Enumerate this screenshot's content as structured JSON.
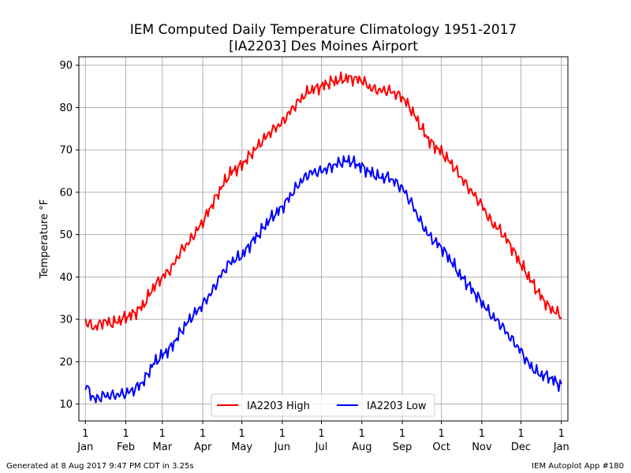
{
  "title_line1": "IEM Computed Daily Temperature Climatology 1951-2017",
  "title_line2": "[IA2203] Des Moines Airport",
  "footer_left": "Generated at 8 Aug 2017 9:47 PM CDT in 3.25s",
  "footer_right": "IEM Autoplot App #180",
  "chart_data": {
    "type": "line",
    "title": "IEM Computed Daily Temperature Climatology 1951-2017 [IA2203] Des Moines Airport",
    "xlabel": "",
    "ylabel": "Temperature °F",
    "ylim": [
      6,
      92
    ],
    "xlim": [
      "Dec 27",
      "Jan 6"
    ],
    "yticks": [
      10,
      20,
      30,
      40,
      50,
      60,
      70,
      80,
      90
    ],
    "xticks": [
      {
        "date": "Jan 1",
        "day_label": "1",
        "month_label": "Jan"
      },
      {
        "date": "Feb 1",
        "day_label": "1",
        "month_label": "Feb"
      },
      {
        "date": "Mar 1",
        "day_label": "1",
        "month_label": "Mar"
      },
      {
        "date": "Apr 1",
        "day_label": "1",
        "month_label": "Apr"
      },
      {
        "date": "May 1",
        "day_label": "1",
        "month_label": "May"
      },
      {
        "date": "Jun 1",
        "day_label": "1",
        "month_label": "Jun"
      },
      {
        "date": "Jul 1",
        "day_label": "1",
        "month_label": "Jul"
      },
      {
        "date": "Aug 1",
        "day_label": "1",
        "month_label": "Aug"
      },
      {
        "date": "Sep 1",
        "day_label": "1",
        "month_label": "Sep"
      },
      {
        "date": "Oct 1",
        "day_label": "1",
        "month_label": "Oct"
      },
      {
        "date": "Nov 1",
        "day_label": "1",
        "month_label": "Nov"
      },
      {
        "date": "Dec 1",
        "day_label": "1",
        "month_label": "Dec"
      },
      {
        "date": "Jan 1",
        "day_label": "1",
        "month_label": "Jan"
      }
    ],
    "grid": true,
    "legend_position": "lower-center",
    "series": [
      {
        "name": "IA2203 High",
        "color": "#ff0000",
        "x": [
          "Jan 1",
          "Jan 8",
          "Jan 15",
          "Jan 22",
          "Feb 1",
          "Feb 8",
          "Feb 15",
          "Feb 22",
          "Mar 1",
          "Mar 8",
          "Mar 15",
          "Mar 22",
          "Apr 1",
          "Apr 8",
          "Apr 15",
          "Apr 22",
          "May 1",
          "May 8",
          "May 15",
          "May 22",
          "Jun 1",
          "Jun 8",
          "Jun 15",
          "Jun 22",
          "Jul 1",
          "Jul 8",
          "Jul 15",
          "Jul 22",
          "Aug 1",
          "Aug 8",
          "Aug 15",
          "Aug 22",
          "Sep 1",
          "Sep 8",
          "Sep 15",
          "Sep 22",
          "Oct 1",
          "Oct 8",
          "Oct 15",
          "Oct 22",
          "Nov 1",
          "Nov 8",
          "Nov 15",
          "Nov 22",
          "Dec 1",
          "Dec 8",
          "Dec 15",
          "Dec 22",
          "Dec 31"
        ],
        "values": [
          29.5,
          28.0,
          29.5,
          29.0,
          30.5,
          31.5,
          33.5,
          37.5,
          40.0,
          42.0,
          46.0,
          48.5,
          53.0,
          57.0,
          61.0,
          64.5,
          66.5,
          69.0,
          71.5,
          74.0,
          76.5,
          79.5,
          82.0,
          84.0,
          85.0,
          86.0,
          86.5,
          87.0,
          86.5,
          84.5,
          84.0,
          84.0,
          82.5,
          79.5,
          75.5,
          72.0,
          69.5,
          67.0,
          64.0,
          61.0,
          57.0,
          53.0,
          51.0,
          48.0,
          43.0,
          39.5,
          36.0,
          33.0,
          31.0
        ]
      },
      {
        "name": "IA2203 Low",
        "color": "#0000ff",
        "x": [
          "Jan 1",
          "Jan 8",
          "Jan 15",
          "Jan 22",
          "Feb 1",
          "Feb 8",
          "Feb 15",
          "Feb 22",
          "Mar 1",
          "Mar 8",
          "Mar 15",
          "Mar 22",
          "Apr 1",
          "Apr 8",
          "Apr 15",
          "Apr 22",
          "May 1",
          "May 8",
          "May 15",
          "May 22",
          "Jun 1",
          "Jun 8",
          "Jun 15",
          "Jun 22",
          "Jul 1",
          "Jul 8",
          "Jul 15",
          "Jul 22",
          "Aug 1",
          "Aug 8",
          "Aug 15",
          "Aug 22",
          "Sep 1",
          "Sep 8",
          "Sep 15",
          "Sep 22",
          "Oct 1",
          "Oct 8",
          "Oct 15",
          "Oct 22",
          "Nov 1",
          "Nov 8",
          "Nov 15",
          "Nov 22",
          "Dec 1",
          "Dec 8",
          "Dec 15",
          "Dec 22",
          "Dec 31"
        ],
        "values": [
          14.5,
          11.0,
          12.0,
          12.0,
          12.5,
          13.5,
          15.5,
          19.5,
          21.5,
          23.5,
          27.0,
          30.0,
          33.5,
          36.5,
          40.5,
          43.5,
          45.0,
          48.0,
          50.5,
          53.5,
          56.5,
          59.5,
          62.5,
          64.5,
          65.0,
          66.0,
          67.0,
          67.5,
          66.0,
          64.5,
          63.5,
          63.5,
          61.0,
          57.5,
          53.0,
          49.5,
          47.0,
          44.0,
          40.5,
          38.0,
          34.0,
          31.0,
          29.0,
          26.0,
          22.5,
          19.0,
          17.0,
          16.5,
          14.5
        ]
      }
    ]
  }
}
